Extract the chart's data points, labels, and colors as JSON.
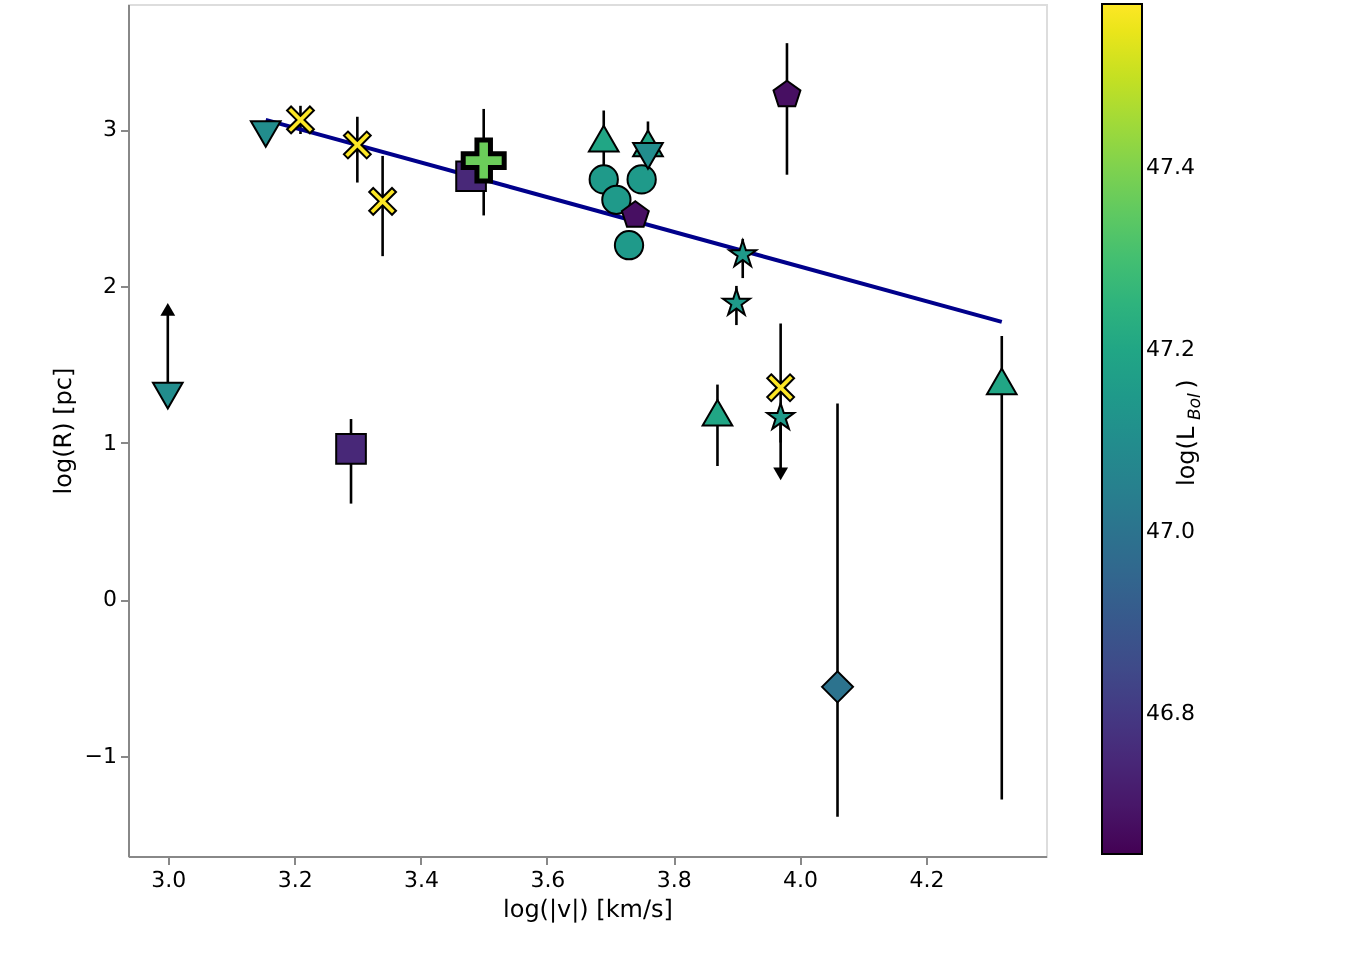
{
  "chart_data": {
    "type": "scatter",
    "xlabel": "log(|v|) [km/s]",
    "ylabel": "log(R) [pc]",
    "clabel": "log(L$_{Bol}$)",
    "xlim": [
      2.937,
      4.39
    ],
    "xticks": [
      {
        "value": 3.0,
        "label": "3.0"
      },
      3.2,
      3.4,
      3.6,
      3.8,
      {
        "value": 4.0,
        "label": "4.0"
      },
      4.2
    ],
    "ylim": [
      -1.64,
      3.8
    ],
    "yticks": [
      -1,
      0,
      1,
      2,
      3
    ],
    "clim": [
      46.646,
      47.58
    ],
    "cticks": [
      46.8,
      {
        "value": 47.0,
        "label": "47.0"
      },
      47.2,
      47.4
    ],
    "grid": false,
    "series": [
      {
        "marker": "triangle-down",
        "x": [
          3.0,
          3.155,
          3.76
        ],
        "values": [
          1.3,
          2.97,
          2.83
        ],
        "cvalues": [
          47.1,
          47.1,
          47.1
        ],
        "errors": [
          [
            1.3,
            1.85
          ],
          null,
          null
        ]
      },
      {
        "marker": "x",
        "x": [
          3.21,
          3.3,
          3.34,
          3.97
        ],
        "values": [
          3.06,
          2.9,
          2.54,
          1.35
        ],
        "cvalues": [
          47.58,
          47.58,
          47.58,
          47.58
        ],
        "errors": [
          [
            2.97,
            3.15
          ],
          [
            2.66,
            3.08
          ],
          [
            2.19,
            2.83
          ],
          [
            1.0,
            1.76
          ]
        ]
      },
      {
        "marker": "square",
        "x": [
          3.29,
          3.48
        ],
        "values": [
          0.96,
          2.7
        ],
        "cvalues": [
          46.75,
          46.75
        ],
        "errors": [
          [
            0.61,
            1.15
          ],
          null
        ]
      },
      {
        "marker": "plus",
        "x": [
          3.5
        ],
        "values": [
          2.8
        ],
        "cvalues": [
          47.37
        ],
        "errors": [
          [
            2.45,
            3.13
          ]
        ]
      },
      {
        "marker": "circle",
        "x": [
          3.69,
          3.71,
          3.75,
          3.73
        ],
        "values": [
          2.68,
          2.55,
          2.68,
          2.26
        ],
        "cvalues": [
          47.15,
          47.15,
          47.15,
          47.15
        ]
      },
      {
        "x": [
          3.74,
          3.98
        ],
        "values": [
          2.45,
          3.22
        ],
        "cvalues": [
          46.68,
          46.68
        ],
        "errors": [
          null,
          [
            2.71,
            3.55
          ]
        ]
      },
      {
        "marker": "triangle",
        "x": [
          3.69,
          3.76,
          3.87,
          4.32
        ],
        "values": [
          2.94,
          2.91,
          1.19,
          1.39
        ],
        "cvalues": [
          47.2,
          47.2,
          47.2,
          47.2
        ],
        "errors": [
          [
            2.76,
            3.12
          ],
          [
            2.77,
            3.05
          ],
          [
            0.85,
            1.37
          ],
          [
            -1.28,
            1.68
          ]
        ]
      },
      {
        "marker": "star",
        "x": [
          3.91,
          3.9,
          3.97
        ],
        "values": [
          2.2,
          1.89,
          1.16
        ],
        "cvalues": [
          47.15,
          47.15,
          47.15
        ],
        "errors": [
          [
            2.05,
            2.3
          ],
          [
            1.75,
            2.0
          ],
          [
            0.8,
            1.16
          ]
        ]
      },
      {
        "marker": "diamond",
        "x": [
          4.06
        ],
        "values": [
          -0.56
        ],
        "cvalues": [
          47.0
        ],
        "errors": [
          [
            -1.39,
            1.25
          ]
        ]
      },
      {
        "marker": "triangle",
        "x": [
          3.0
        ],
        "values": [
          1.85
        ],
        "color": "#000000"
      },
      {
        "marker": "triangle-down",
        "x": [
          3.97
        ],
        "values": [
          0.8
        ],
        "color": "#000000"
      },
      {
        "type": "line",
        "x": [
          3.155,
          4.32
        ],
        "values": [
          3.06,
          1.77
        ],
        "color": "#00008b"
      }
    ]
  }
}
